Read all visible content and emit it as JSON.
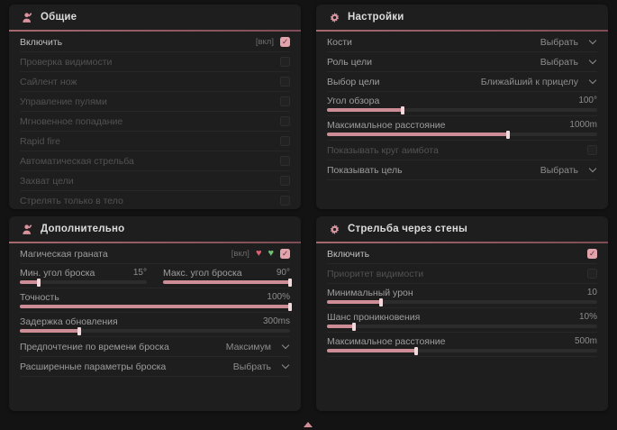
{
  "colors": {
    "accent_pink": "#db929c",
    "slider_fill": "#cd8d96",
    "checkbox_checked": "#e2a3ab",
    "header_rule": "#9c636b",
    "panel_bg": "#1e1e1f",
    "page_bg": "#131314"
  },
  "icons": {
    "general_header": "person-icon",
    "settings_header": "gear-icon",
    "additional_header": "person-icon",
    "wallbang_header": "gear-icon",
    "grenade_status_1": "broken-heart-icon",
    "grenade_status_2": "green-heart-icon",
    "footer": "triangle-up-icon"
  },
  "panels": {
    "general": {
      "title": "Общие",
      "rows": [
        {
          "label": "Включить",
          "tag": "[вкл]",
          "checked": true
        },
        {
          "label": "Проверка видимости",
          "checked": false
        },
        {
          "label": "Сайлент нож",
          "checked": false
        },
        {
          "label": "Управление пулями",
          "checked": false
        },
        {
          "label": "Мгновенное попадание",
          "checked": false
        },
        {
          "label": "Rapid fire",
          "checked": false
        },
        {
          "label": "Автоматическая стрельба",
          "checked": false
        },
        {
          "label": "Захват цели",
          "checked": false
        },
        {
          "label": "Стрелять только в тело",
          "checked": false
        }
      ]
    },
    "settings": {
      "title": "Настройки",
      "rows": {
        "bones": {
          "label": "Кости",
          "value": "Выбрать"
        },
        "target_role": {
          "label": "Роль цели",
          "value": "Выбрать"
        },
        "target_select": {
          "label": "Выбор цели",
          "value": "Ближайший к прицелу"
        },
        "fov": {
          "label": "Угол обзора",
          "value": "100°",
          "pct": 28
        },
        "max_distance": {
          "label": "Максимальное расстояние",
          "value": "1000m",
          "pct": 67
        },
        "show_circle": {
          "label": "Показывать круг аимбота",
          "checked": false
        },
        "show_target": {
          "label": "Показывать цель",
          "value": "Выбрать"
        }
      }
    },
    "additional": {
      "title": "Дополнительно",
      "rows": {
        "magic_grenade": {
          "label": "Магическая граната",
          "tag": "[вкл]",
          "checked": true
        },
        "min_angle": {
          "label": "Мин. угол броска",
          "value": "15°",
          "pct": 15
        },
        "max_angle": {
          "label": "Макс. угол броска",
          "value": "90°",
          "pct": 100
        },
        "accuracy": {
          "label": "Точность",
          "value": "100%",
          "pct": 100
        },
        "update_delay": {
          "label": "Задержка обновления",
          "value": "300ms",
          "pct": 22
        },
        "throw_time": {
          "label": "Предпочтение по времени броска",
          "value": "Максимум"
        },
        "advanced": {
          "label": "Расширенные параметры броска",
          "value": "Выбрать"
        }
      }
    },
    "wallbang": {
      "title": "Стрельба через стены",
      "rows": {
        "enable": {
          "label": "Включить",
          "checked": true
        },
        "visibility_priority": {
          "label": "Приоритет видимости",
          "checked": false
        },
        "min_damage": {
          "label": "Минимальный урон",
          "value": "10",
          "pct": 20
        },
        "penetration_chance": {
          "label": "Шанс проникновения",
          "value": "10%",
          "pct": 10
        },
        "max_distance": {
          "label": "Максимальное расстояние",
          "value": "500m",
          "pct": 33
        }
      }
    }
  }
}
